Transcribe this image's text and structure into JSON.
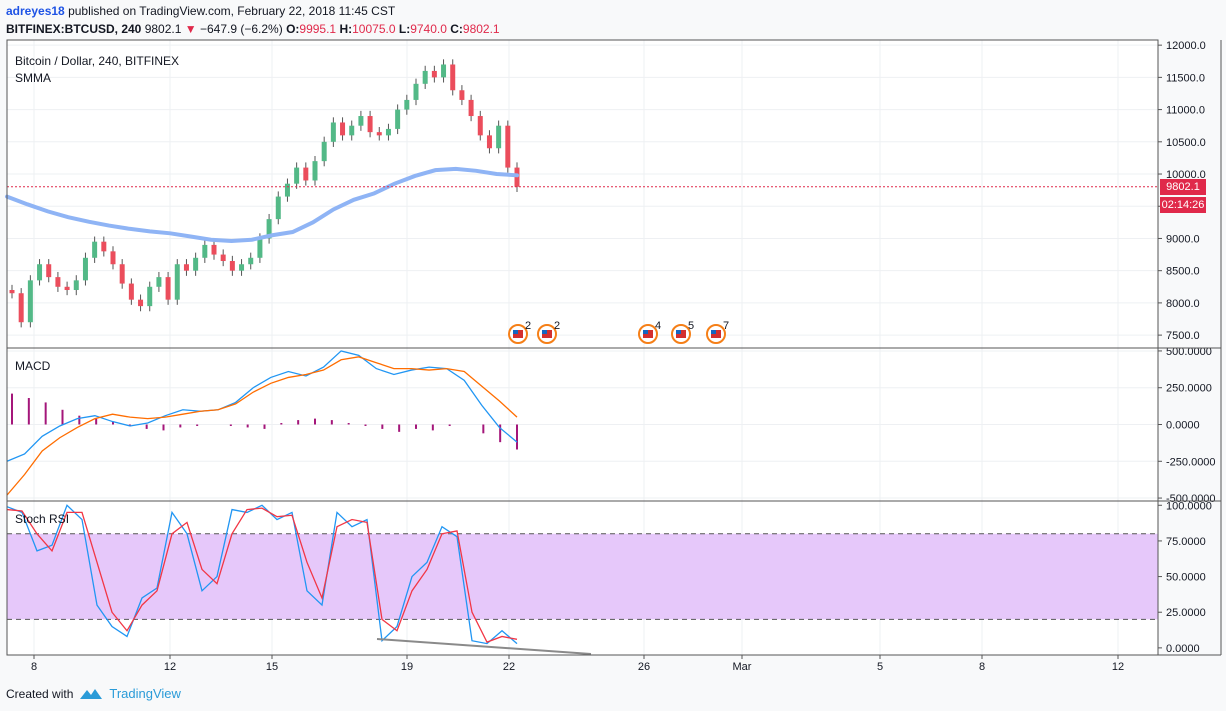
{
  "header": {
    "username": "adreyes18",
    "published_text": "published on TradingView.com, February 22, 2018 11:45 CST",
    "symbol": "BITFINEX:BTCUSD, 240",
    "last_price": "9802.1",
    "change": "−647.9 (−6.2%)",
    "open_label": "O:",
    "open": "9995.1",
    "high_label": "H:",
    "high": "10075.0",
    "low_label": "L:",
    "low": "9740.0",
    "close_label": "C:",
    "close": "9802.1"
  },
  "legend": {
    "price_title": "Bitcoin / Dollar, 240, BITFINEX",
    "ma_label": "SMMA",
    "macd_label": "MACD",
    "rsi_label": "Stoch RSI"
  },
  "price_tag": "9802.1",
  "countdown_tag": "02:14:26",
  "event_counts": [
    "2",
    "2",
    "4",
    "5",
    "7"
  ],
  "footer": {
    "created_with": "Created with",
    "brand": "TradingView"
  },
  "colors": {
    "up": "#53b987",
    "down": "#eb4d5c",
    "smma": "#8fb4f5",
    "macd": "#2196f3",
    "signal": "#ff6d00",
    "hist": "#a4167a",
    "stoch_k": "#2196f3",
    "stoch_d": "#f23645",
    "band": "#e6c8fa"
  },
  "chart_data": [
    {
      "type": "candlestick",
      "title": "Bitcoin / Dollar, 240, BITFINEX",
      "x_ticks": [
        "8",
        "12",
        "15",
        "19",
        "22",
        "26",
        "Mar",
        "5",
        "8",
        "12"
      ],
      "y_ticks": [
        "12000.0",
        "11500.0",
        "11000.0",
        "10500.0",
        "10000.0",
        "9500.0",
        "9000.0",
        "8500.0",
        "8000.0",
        "7500.0"
      ],
      "ylim": [
        7300,
        12080
      ],
      "close_series": [
        8150,
        7700,
        8350,
        8600,
        8400,
        8250,
        8200,
        8350,
        8700,
        8950,
        8800,
        8600,
        8300,
        8050,
        7950,
        8250,
        8400,
        8050,
        8600,
        8500,
        8700,
        8900,
        8750,
        8650,
        8500,
        8600,
        8700,
        9000,
        9300,
        9650,
        9850,
        10100,
        9900,
        10200,
        10500,
        10800,
        10600,
        10750,
        10900,
        10650,
        10600,
        10700,
        11000,
        11150,
        11400,
        11600,
        11500,
        11700,
        11300,
        11150,
        10900,
        10600,
        10400,
        10750,
        10100,
        9802
      ],
      "smma_series": [
        9650,
        9530,
        9420,
        9330,
        9260,
        9200,
        9150,
        9110,
        9080,
        9030,
        8980,
        8960,
        8980,
        9050,
        9100,
        9250,
        9450,
        9600,
        9700,
        9850,
        9970,
        10060,
        10080,
        10050,
        10000,
        9980
      ]
    },
    {
      "type": "line",
      "title": "MACD",
      "y_ticks": [
        "500.0000",
        "250.0000",
        "0.0000",
        "-250.0000",
        "-500.0000"
      ],
      "ylim": [
        -520,
        520
      ],
      "series": [
        {
          "name": "MACD",
          "values": [
            -250,
            -200,
            -80,
            -10,
            40,
            60,
            20,
            -10,
            10,
            60,
            100,
            90,
            100,
            150,
            250,
            320,
            360,
            330,
            390,
            500,
            470,
            380,
            340,
            370,
            390,
            380,
            300,
            130,
            -20,
            -120
          ]
        },
        {
          "name": "Signal",
          "values": [
            -480,
            -340,
            -180,
            -90,
            -20,
            40,
            70,
            50,
            40,
            50,
            70,
            90,
            100,
            140,
            220,
            280,
            320,
            340,
            370,
            440,
            460,
            420,
            380,
            380,
            370,
            380,
            360,
            260,
            160,
            50
          ]
        }
      ],
      "histogram": [
        210,
        180,
        150,
        100,
        60,
        40,
        20,
        -10,
        -30,
        -40,
        -20,
        -10,
        0,
        -10,
        -20,
        -30,
        10,
        30,
        40,
        30,
        10,
        -10,
        -30,
        -50,
        -30,
        -40,
        -10,
        0,
        -60,
        -120,
        -170
      ]
    },
    {
      "type": "line",
      "title": "Stoch RSI",
      "y_ticks": [
        "100.0000",
        "75.0000",
        "50.0000",
        "25.0000",
        "0.0000"
      ],
      "ylim": [
        -5,
        103
      ],
      "band": [
        20,
        80
      ],
      "series": [
        {
          "name": "K",
          "values": [
            99,
            95,
            68,
            72,
            100,
            90,
            30,
            15,
            8,
            35,
            42,
            95,
            80,
            40,
            50,
            97,
            95,
            100,
            90,
            95,
            40,
            30,
            95,
            85,
            90,
            5,
            15,
            50,
            60,
            85,
            78,
            5,
            3,
            12,
            3
          ]
        },
        {
          "name": "D",
          "values": [
            97,
            96,
            80,
            68,
            95,
            95,
            60,
            25,
            12,
            30,
            40,
            80,
            88,
            55,
            45,
            80,
            97,
            98,
            92,
            93,
            60,
            35,
            85,
            90,
            88,
            20,
            12,
            40,
            55,
            80,
            82,
            25,
            4,
            8,
            6
          ]
        }
      ]
    }
  ]
}
